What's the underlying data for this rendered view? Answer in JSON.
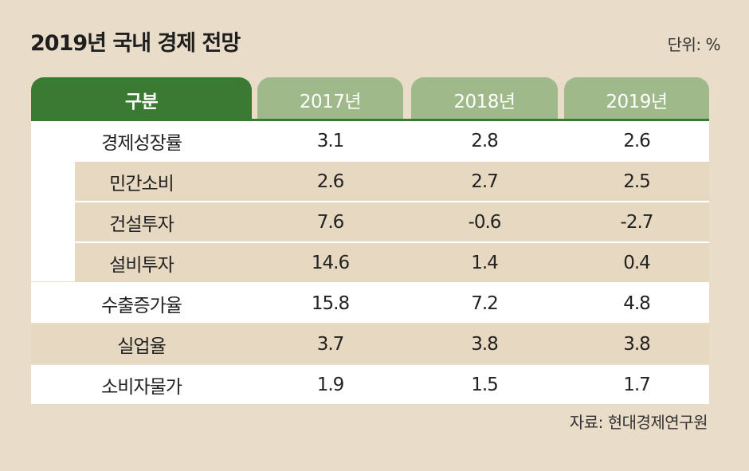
{
  "title": "2019년 국내 경제 전망",
  "unit": "단위: %",
  "source": "자료: 현대경제연구원",
  "chart_data": {
    "type": "table",
    "title": "2019년 국내 경제 전망",
    "columns": [
      "구분",
      "2017년",
      "2018년",
      "2019년"
    ],
    "rows": [
      {
        "label": "경제성장률",
        "values": [
          "3.1",
          "2.8",
          "2.6"
        ]
      },
      {
        "label": "민간소비",
        "values": [
          "2.6",
          "2.7",
          "2.5"
        ]
      },
      {
        "label": "건설투자",
        "values": [
          "7.6",
          "-0.6",
          "-2.7"
        ]
      },
      {
        "label": "설비투자",
        "values": [
          "14.6",
          "1.4",
          "0.4"
        ]
      },
      {
        "label": "수출증가율",
        "values": [
          "15.8",
          "7.2",
          "4.8"
        ]
      },
      {
        "label": "실업율",
        "values": [
          "3.7",
          "3.8",
          "3.8"
        ]
      },
      {
        "label": "소비자물가",
        "values": [
          "1.9",
          "1.5",
          "1.7"
        ]
      }
    ]
  }
}
